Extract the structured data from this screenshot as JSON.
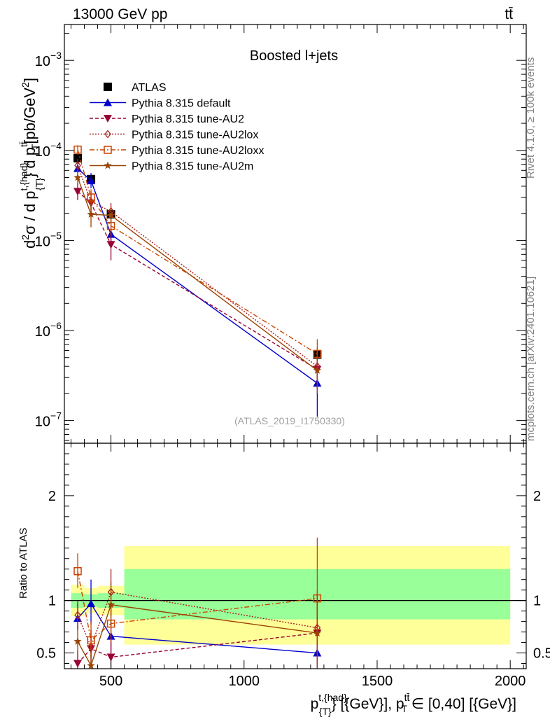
{
  "chart_data": [
    {
      "panel": "main",
      "type": "line",
      "title": "Boosted l+jets",
      "header_left": "13000 GeV pp",
      "header_right": "tt̄",
      "side_label_top": "Rivet 4.1.0, ≥ 100k events",
      "side_label_bottom": "mcplots.cern.ch [arXiv:2401.10621]",
      "watermark": "(ATLAS_2019_I1750330)",
      "ylabel": {
        "base1": "d",
        "sup1": "2",
        "mid1": "σ  /  d p",
        "sup2": "t,{had}",
        "sub2": "{T}",
        "mid2": "} d p",
        "sup3": "tt̄",
        "sub3": "T",
        "tail": "[pb/GeV",
        "sup4": "2",
        "end": "]"
      },
      "xlabel": {
        "p1": "p",
        "sup1": "t,{had}",
        "sub1": "{T}",
        "p2": "} [{GeV}], p",
        "sup2": "tt̄",
        "sub2": "T",
        "p3": " ∈ [0,40] [{GeV}]"
      },
      "xlim": [
        325,
        2060
      ],
      "ylog": true,
      "ylim": [
        5.6e-08,
        0.0025
      ],
      "y_tick_labels": [
        {
          "value": 1e-07,
          "base": "10",
          "exp": "−7"
        },
        {
          "value": 1e-06,
          "base": "10",
          "exp": "−6"
        },
        {
          "value": 1e-05,
          "base": "10",
          "exp": "−5"
        },
        {
          "value": 0.0001,
          "base": "10",
          "exp": "−4"
        },
        {
          "value": 0.001,
          "base": "10",
          "exp": "−3"
        }
      ],
      "x": [
        375,
        425,
        500,
        1275
      ],
      "series": [
        {
          "name": "ATLAS",
          "color": "#000000",
          "marker": "square-filled",
          "dash": "none",
          "values": [
            8.2e-05,
            4.8e-05,
            1.95e-05,
            5.4e-07
          ],
          "errors": [
            [
              7.5e-05,
              9e-05
            ],
            [
              4.3e-05,
              5.3e-05
            ],
            [
              1.75e-05,
              2.15e-05
            ],
            [
              4.8e-07,
              6e-07
            ]
          ]
        },
        {
          "name": "Pythia 8.315 default",
          "color": "#0000cc",
          "marker": "triangle-up",
          "dash": "none",
          "values": [
            6.3e-05,
            4.6e-05,
            1.17e-05,
            2.6e-07
          ],
          "errors": [
            [
              5.5e-05,
              7.2e-05
            ],
            [
              3.8e-05,
              5.6e-05
            ],
            [
              9.5e-06,
              1.45e-05
            ],
            [
              1.1e-07,
              5e-07
            ]
          ]
        },
        {
          "name": "Pythia 8.315 tune-AU2",
          "color": "#990033",
          "marker": "triangle-down",
          "dash": "5,3",
          "values": [
            3.5e-05,
            2.6e-05,
            9e-06,
            3.7e-07
          ],
          "errors": [
            [
              2.8e-05,
              4.3e-05
            ],
            [
              1.9e-05,
              3.5e-05
            ],
            [
              6e-06,
              1.3e-05
            ],
            [
              2.2e-07,
              6e-07
            ]
          ]
        },
        {
          "name": "Pythia 8.315 tune-AU2lox",
          "color": "#aa2222",
          "marker": "diamond-open",
          "dash": "2,2",
          "values": [
            6.8e-05,
            2.7e-05,
            2.1e-05,
            4e-07
          ],
          "errors": [
            [
              5.8e-05,
              8e-05
            ],
            [
              2.2e-05,
              3.3e-05
            ],
            [
              1.6e-05,
              2.6e-05
            ],
            [
              2.5e-07,
              6.5e-07
            ]
          ]
        },
        {
          "name": "Pythia 8.315 tune-AU2loxx",
          "color": "#cc4400",
          "marker": "square-open",
          "dash": "7,3,2,3",
          "values": [
            0.000102,
            3e-05,
            1.45e-05,
            5.5e-07
          ],
          "errors": [
            [
              9e-05,
              0.000114
            ],
            [
              2.4e-05,
              3.7e-05
            ],
            [
              1.1e-05,
              1.9e-05
            ],
            [
              3.5e-07,
              8e-07
            ]
          ]
        },
        {
          "name": "Pythia 8.315 tune-AU2m",
          "color": "#994400",
          "marker": "star",
          "dash": "none",
          "values": [
            5e-05,
            1.95e-05,
            1.9e-05,
            3.6e-07
          ],
          "errors": [
            [
              4e-05,
              6e-05
            ],
            [
              1.4e-05,
              2.6e-05
            ],
            [
              1.5e-05,
              2.4e-05
            ],
            [
              2e-07,
              5.5e-07
            ]
          ]
        }
      ]
    },
    {
      "panel": "ratio",
      "type": "line",
      "ylabel": "Ratio to ATLAS",
      "xlim": [
        325,
        2060
      ],
      "ylim": [
        0.35,
        2.5
      ],
      "x_ticks": [
        500,
        1000,
        1500,
        2000
      ],
      "x_tick_labels": [
        "500",
        "1000",
        "1500",
        "2000"
      ],
      "y_ticks": [
        0.5,
        1,
        2
      ],
      "y_tick_labels": [
        "0.5",
        "1",
        "2"
      ],
      "bands": [
        {
          "x": [
            350,
            400
          ],
          "yellow": [
            0.85,
            1.15
          ],
          "green": [
            0.93,
            1.07
          ]
        },
        {
          "x": [
            400,
            450
          ],
          "yellow": [
            0.88,
            1.12
          ],
          "green": [
            0.94,
            1.06
          ]
        },
        {
          "x": [
            450,
            550
          ],
          "yellow": [
            0.86,
            1.14
          ],
          "green": [
            0.93,
            1.07
          ]
        },
        {
          "x": [
            550,
            2000
          ],
          "yellow": [
            0.58,
            1.52
          ],
          "green": [
            0.82,
            1.3
          ]
        }
      ],
      "series": [
        {
          "name": "Pythia 8.315 default",
          "values": [
            0.83,
            0.97,
            0.66,
            0.5
          ],
          "errors": [
            [
              0.72,
              0.97
            ],
            [
              0.77,
              1.2
            ],
            [
              0.5,
              0.8
            ],
            [
              0.25,
              0.75
            ]
          ]
        },
        {
          "name": "Pythia 8.315 tune-AU2",
          "values": [
            0.4,
            0.54,
            0.46,
            0.69
          ],
          "errors": [
            [
              0.3,
              0.52
            ],
            [
              0.38,
              0.72
            ],
            [
              0.3,
              0.66
            ],
            [
              0.35,
              1.05
            ]
          ]
        },
        {
          "name": "Pythia 8.315 tune-AU2lox",
          "values": [
            0.86,
            0.56,
            1.08,
            0.74
          ],
          "errors": [
            [
              0.72,
              1.0
            ],
            [
              0.42,
              0.72
            ],
            [
              0.85,
              1.3
            ],
            [
              0.4,
              1.1
            ]
          ]
        },
        {
          "name": "Pythia 8.315 tune-AU2loxx",
          "values": [
            1.28,
            0.62,
            0.78,
            1.02
          ],
          "errors": [
            [
              1.12,
              1.45
            ],
            [
              0.46,
              0.8
            ],
            [
              0.6,
              0.98
            ],
            [
              0.6,
              1.6
            ]
          ]
        },
        {
          "name": "Pythia 8.315 tune-AU2m",
          "values": [
            0.61,
            0.38,
            0.96,
            0.69
          ],
          "errors": [
            [
              0.48,
              0.76
            ],
            [
              0.28,
              0.52
            ],
            [
              0.76,
              1.18
            ],
            [
              0.35,
              1.05
            ]
          ]
        }
      ]
    }
  ]
}
